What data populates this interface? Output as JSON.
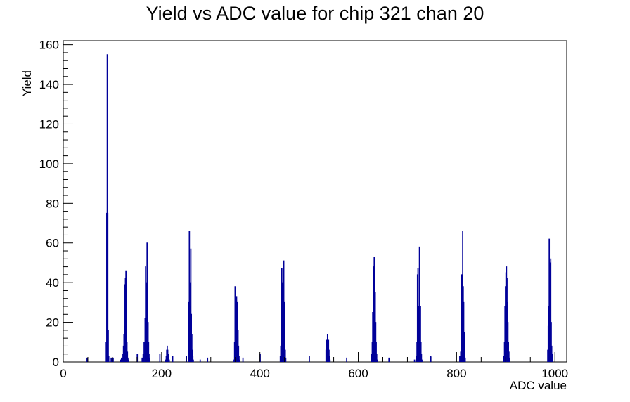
{
  "chart_data": {
    "type": "histogram",
    "title": "Yield vs ADC value for chip 321 chan 20",
    "xlabel": "ADC value",
    "ylabel": "Yield",
    "xlim": [
      0,
      1024
    ],
    "ylim": [
      0,
      162
    ],
    "x_ticks": [
      0,
      200,
      400,
      600,
      800,
      1000
    ],
    "y_ticks": [
      0,
      20,
      40,
      60,
      80,
      100,
      120,
      140,
      160
    ],
    "grid": false,
    "legend": "none",
    "line_color": "#000099",
    "bins": [
      [
        48,
        2
      ],
      [
        87,
        10
      ],
      [
        88,
        75
      ],
      [
        89,
        155
      ],
      [
        90,
        75
      ],
      [
        91,
        16
      ],
      [
        92,
        3
      ],
      [
        97,
        2
      ],
      [
        101,
        2
      ],
      [
        116,
        1
      ],
      [
        118,
        2
      ],
      [
        120,
        2
      ],
      [
        121,
        4
      ],
      [
        122,
        8
      ],
      [
        123,
        14
      ],
      [
        124,
        39
      ],
      [
        125,
        18
      ],
      [
        126,
        42
      ],
      [
        127,
        46
      ],
      [
        128,
        22
      ],
      [
        129,
        10
      ],
      [
        130,
        5
      ],
      [
        131,
        2
      ],
      [
        132,
        1
      ],
      [
        150,
        4
      ],
      [
        160,
        2
      ],
      [
        162,
        4
      ],
      [
        164,
        10
      ],
      [
        166,
        22
      ],
      [
        167,
        48
      ],
      [
        168,
        30
      ],
      [
        169,
        40
      ],
      [
        170,
        60
      ],
      [
        171,
        35
      ],
      [
        172,
        20
      ],
      [
        173,
        10
      ],
      [
        174,
        4
      ],
      [
        175,
        2
      ],
      [
        196,
        4
      ],
      [
        207,
        1
      ],
      [
        209,
        3
      ],
      [
        210,
        6
      ],
      [
        211,
        8
      ],
      [
        212,
        6
      ],
      [
        213,
        4
      ],
      [
        214,
        2
      ],
      [
        215,
        1
      ],
      [
        222,
        3
      ],
      [
        250,
        3
      ],
      [
        254,
        10
      ],
      [
        255,
        30
      ],
      [
        256,
        66
      ],
      [
        257,
        40
      ],
      [
        258,
        28
      ],
      [
        259,
        57
      ],
      [
        260,
        24
      ],
      [
        261,
        14
      ],
      [
        262,
        6
      ],
      [
        263,
        3
      ],
      [
        264,
        1
      ],
      [
        278,
        1
      ],
      [
        293,
        2
      ],
      [
        347,
        1
      ],
      [
        348,
        10
      ],
      [
        349,
        38
      ],
      [
        350,
        36
      ],
      [
        351,
        22
      ],
      [
        352,
        33
      ],
      [
        353,
        30
      ],
      [
        354,
        24
      ],
      [
        355,
        16
      ],
      [
        356,
        8
      ],
      [
        357,
        3
      ],
      [
        358,
        1
      ],
      [
        365,
        2
      ],
      [
        400,
        4
      ],
      [
        441,
        3
      ],
      [
        442,
        8
      ],
      [
        443,
        22
      ],
      [
        444,
        47
      ],
      [
        445,
        40
      ],
      [
        446,
        35
      ],
      [
        447,
        50
      ],
      [
        448,
        51
      ],
      [
        449,
        30
      ],
      [
        450,
        14
      ],
      [
        451,
        6
      ],
      [
        452,
        2
      ],
      [
        500,
        3
      ],
      [
        534,
        6
      ],
      [
        535,
        11
      ],
      [
        536,
        10
      ],
      [
        537,
        14
      ],
      [
        538,
        7
      ],
      [
        539,
        11
      ],
      [
        540,
        6
      ],
      [
        541,
        3
      ],
      [
        542,
        1
      ],
      [
        576,
        2
      ],
      [
        627,
        4
      ],
      [
        628,
        10
      ],
      [
        629,
        25
      ],
      [
        630,
        32
      ],
      [
        631,
        48
      ],
      [
        632,
        53
      ],
      [
        633,
        45
      ],
      [
        634,
        35
      ],
      [
        635,
        20
      ],
      [
        636,
        10
      ],
      [
        637,
        4
      ],
      [
        638,
        1
      ],
      [
        662,
        2
      ],
      [
        714,
        1
      ],
      [
        718,
        3
      ],
      [
        719,
        10
      ],
      [
        720,
        44
      ],
      [
        721,
        47
      ],
      [
        722,
        28
      ],
      [
        723,
        20
      ],
      [
        724,
        58
      ],
      [
        725,
        22
      ],
      [
        726,
        28
      ],
      [
        727,
        10
      ],
      [
        728,
        4
      ],
      [
        729,
        1
      ],
      [
        747,
        3
      ],
      [
        806,
        3
      ],
      [
        808,
        5
      ],
      [
        809,
        20
      ],
      [
        810,
        44
      ],
      [
        811,
        36
      ],
      [
        812,
        66
      ],
      [
        813,
        38
      ],
      [
        814,
        30
      ],
      [
        815,
        15
      ],
      [
        816,
        6
      ],
      [
        817,
        2
      ],
      [
        896,
        3
      ],
      [
        897,
        10
      ],
      [
        898,
        28
      ],
      [
        899,
        38
      ],
      [
        900,
        45
      ],
      [
        901,
        48
      ],
      [
        902,
        42
      ],
      [
        903,
        30
      ],
      [
        904,
        20
      ],
      [
        905,
        10
      ],
      [
        906,
        5
      ],
      [
        907,
        2
      ],
      [
        985,
        6
      ],
      [
        986,
        18
      ],
      [
        987,
        28
      ],
      [
        988,
        62
      ],
      [
        989,
        18
      ],
      [
        990,
        50
      ],
      [
        991,
        52
      ],
      [
        992,
        20
      ],
      [
        993,
        8
      ],
      [
        994,
        4
      ],
      [
        995,
        2
      ]
    ]
  }
}
